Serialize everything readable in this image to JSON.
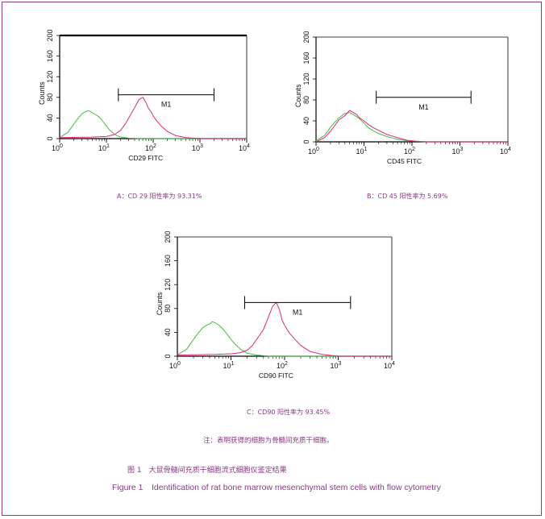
{
  "colors": {
    "frame": "#8a3a86",
    "caption": "#8a3a86",
    "control_histogram": "#3fbf3f",
    "sample_histogram": "#e0257a",
    "axis": "#000000"
  },
  "chart_data": [
    {
      "id": "A",
      "type": "line",
      "title": "",
      "xlabel": "CD29 FITC",
      "ylabel": "Counts",
      "x_scale": "log",
      "xlim": [
        1,
        10000
      ],
      "ylim": [
        0,
        200
      ],
      "x_tick_labels": [
        "10",
        "10",
        "10",
        "10",
        "10"
      ],
      "x_tick_exponents": [
        "0",
        "1",
        "2",
        "3",
        "4"
      ],
      "y_tick_labels": [
        "0",
        "40",
        "80",
        "120",
        "160",
        "200"
      ],
      "gate": {
        "label": "M1",
        "from": 18,
        "to": 2000,
        "level": 85
      },
      "top_border_thick": true,
      "series": [
        {
          "color": "green",
          "x": [
            1,
            1.5,
            2,
            2.5,
            3,
            3.5,
            4,
            4.5,
            5,
            6,
            7,
            8,
            9,
            10,
            12,
            15,
            20,
            30,
            50,
            100,
            1000,
            10000
          ],
          "y": [
            2,
            12,
            28,
            40,
            48,
            52,
            54,
            53,
            50,
            46,
            42,
            36,
            30,
            24,
            16,
            8,
            3,
            1,
            0,
            0,
            0,
            0
          ]
        },
        {
          "color": "magenta",
          "x": [
            1,
            5,
            10,
            15,
            20,
            25,
            30,
            40,
            50,
            60,
            70,
            80,
            90,
            100,
            120,
            150,
            200,
            300,
            500,
            1000,
            10000
          ],
          "y": [
            2,
            3,
            4,
            8,
            16,
            28,
            40,
            60,
            76,
            80,
            70,
            58,
            52,
            44,
            34,
            24,
            14,
            6,
            2,
            0,
            0
          ]
        }
      ]
    },
    {
      "id": "B",
      "type": "line",
      "title": "",
      "xlabel": "CD45 FITC",
      "ylabel": "Counts",
      "x_scale": "log",
      "xlim": [
        1,
        10000
      ],
      "ylim": [
        0,
        200
      ],
      "x_tick_labels": [
        "10",
        "10",
        "10",
        "10",
        "10"
      ],
      "x_tick_exponents": [
        "0",
        "1",
        "2",
        "3",
        "4"
      ],
      "y_tick_labels": [
        "0",
        "40",
        "80",
        "120",
        "160",
        "200"
      ],
      "gate": {
        "label": "M1",
        "from": 18,
        "to": 1700,
        "level": 85
      },
      "top_border_thick": false,
      "series": [
        {
          "color": "green",
          "x": [
            1,
            1.5,
            2,
            3,
            4,
            5,
            6,
            7,
            8,
            10,
            12,
            15,
            20,
            30,
            50,
            80,
            120,
            200,
            400,
            10000
          ],
          "y": [
            2,
            12,
            28,
            46,
            54,
            56,
            52,
            48,
            44,
            36,
            28,
            22,
            16,
            10,
            5,
            2,
            1,
            0,
            0,
            0
          ]
        },
        {
          "color": "magenta",
          "x": [
            1,
            1.5,
            2,
            3,
            4,
            5,
            6,
            7,
            8,
            10,
            12,
            15,
            20,
            30,
            50,
            80,
            120,
            200,
            400,
            10000
          ],
          "y": [
            0,
            8,
            20,
            42,
            50,
            60,
            56,
            52,
            46,
            40,
            34,
            28,
            22,
            14,
            8,
            3,
            1,
            0,
            0,
            0
          ]
        }
      ]
    },
    {
      "id": "C",
      "type": "line",
      "title": "",
      "xlabel": "CD90 FITC",
      "ylabel": "Counts",
      "x_scale": "log",
      "xlim": [
        1,
        10000
      ],
      "ylim": [
        0,
        200
      ],
      "x_tick_labels": [
        "10",
        "10",
        "10",
        "10",
        "10"
      ],
      "x_tick_exponents": [
        "0",
        "1",
        "2",
        "3",
        "4"
      ],
      "y_tick_labels": [
        "0",
        "40",
        "80",
        "120",
        "160",
        "200"
      ],
      "gate": {
        "label": "M1",
        "from": 18,
        "to": 1700,
        "level": 90
      },
      "top_border_thick": false,
      "series": [
        {
          "color": "green",
          "x": [
            1,
            1.5,
            2,
            2.5,
            3,
            3.5,
            4,
            4.5,
            5,
            6,
            7,
            8,
            10,
            12,
            15,
            20,
            30,
            50,
            100,
            10000
          ],
          "y": [
            2,
            12,
            28,
            40,
            48,
            52,
            54,
            58,
            56,
            52,
            46,
            40,
            28,
            20,
            12,
            5,
            2,
            0,
            0,
            0
          ]
        },
        {
          "color": "magenta",
          "x": [
            1,
            5,
            10,
            15,
            20,
            25,
            30,
            40,
            50,
            60,
            70,
            80,
            90,
            100,
            120,
            150,
            200,
            300,
            500,
            1000,
            10000
          ],
          "y": [
            2,
            3,
            4,
            6,
            10,
            18,
            28,
            44,
            66,
            84,
            90,
            78,
            60,
            52,
            40,
            30,
            18,
            8,
            3,
            0,
            0
          ]
        }
      ]
    }
  ],
  "captions": {
    "a": "A：CD 29 阳性率为 93.31%",
    "b": "B：CD 45 阳性率为 5.69%",
    "c": "C：CD90 阳性率为 93.45%"
  },
  "note": "注：表明获得的细胞为骨髓间充质干细胞。",
  "figure_cn": "图 1　大鼠骨髓间充质干细胞流式细胞仪鉴定结果",
  "figure_en": "Figure 1　Identification of rat bone marrow mesenchymal stem cells with flow cytometry"
}
